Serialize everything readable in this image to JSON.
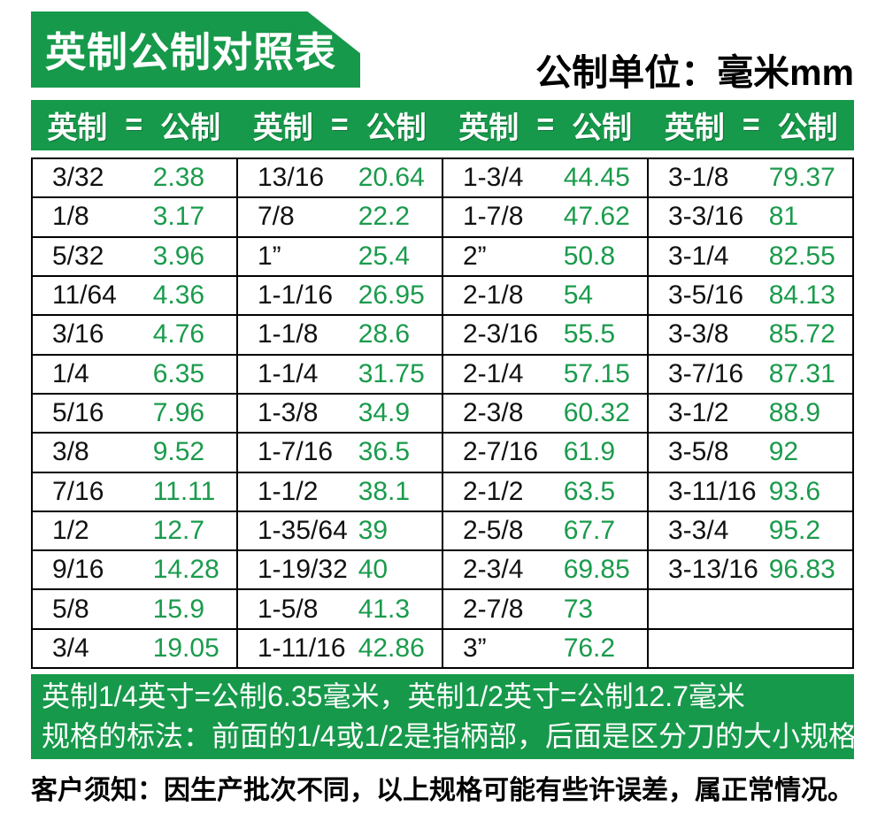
{
  "header": {
    "title": "英制公制对照表",
    "unit_label": "公制单位：毫米mm"
  },
  "table": {
    "column_header": {
      "imperial": "英制",
      "equals": "=",
      "metric": "公制"
    },
    "groups": [
      {
        "rows": [
          {
            "imperial": "3/32",
            "metric": "2.38"
          },
          {
            "imperial": "1/8",
            "metric": "3.17"
          },
          {
            "imperial": "5/32",
            "metric": "3.96"
          },
          {
            "imperial": "11/64",
            "metric": "4.36"
          },
          {
            "imperial": "3/16",
            "metric": "4.76"
          },
          {
            "imperial": "1/4",
            "metric": "6.35"
          },
          {
            "imperial": "5/16",
            "metric": "7.96"
          },
          {
            "imperial": "3/8",
            "metric": "9.52"
          },
          {
            "imperial": "7/16",
            "metric": "11.11"
          },
          {
            "imperial": "1/2",
            "metric": "12.7"
          },
          {
            "imperial": "9/16",
            "metric": "14.28"
          },
          {
            "imperial": "5/8",
            "metric": "15.9"
          },
          {
            "imperial": "3/4",
            "metric": "19.05"
          }
        ]
      },
      {
        "rows": [
          {
            "imperial": "13/16",
            "metric": "20.64"
          },
          {
            "imperial": "7/8",
            "metric": "22.2"
          },
          {
            "imperial": "1”",
            "metric": "25.4"
          },
          {
            "imperial": "1-1/16",
            "metric": "26.95"
          },
          {
            "imperial": "1-1/8",
            "metric": "28.6"
          },
          {
            "imperial": "1-1/4",
            "metric": "31.75"
          },
          {
            "imperial": "1-3/8",
            "metric": "34.9"
          },
          {
            "imperial": "1-7/16",
            "metric": "36.5"
          },
          {
            "imperial": "1-1/2",
            "metric": "38.1"
          },
          {
            "imperial": "1-35/64",
            "metric": "39"
          },
          {
            "imperial": "1-19/32",
            "metric": "40"
          },
          {
            "imperial": "1-5/8",
            "metric": "41.3"
          },
          {
            "imperial": "1-11/16",
            "metric": "42.86"
          }
        ]
      },
      {
        "rows": [
          {
            "imperial": "1-3/4",
            "metric": "44.45"
          },
          {
            "imperial": "1-7/8",
            "metric": "47.62"
          },
          {
            "imperial": "2”",
            "metric": "50.8"
          },
          {
            "imperial": "2-1/8",
            "metric": "54"
          },
          {
            "imperial": "2-3/16",
            "metric": "55.5"
          },
          {
            "imperial": "2-1/4",
            "metric": "57.15"
          },
          {
            "imperial": "2-3/8",
            "metric": "60.32"
          },
          {
            "imperial": "2-7/16",
            "metric": "61.9"
          },
          {
            "imperial": "2-1/2",
            "metric": "63.5"
          },
          {
            "imperial": "2-5/8",
            "metric": "67.7"
          },
          {
            "imperial": "2-3/4",
            "metric": "69.85"
          },
          {
            "imperial": "2-7/8",
            "metric": "73"
          },
          {
            "imperial": "3”",
            "metric": "76.2"
          }
        ]
      },
      {
        "rows": [
          {
            "imperial": "3-1/8",
            "metric": "79.37"
          },
          {
            "imperial": "3-3/16",
            "metric": "81"
          },
          {
            "imperial": "3-1/4",
            "metric": "82.55"
          },
          {
            "imperial": "3-5/16",
            "metric": "84.13"
          },
          {
            "imperial": "3-3/8",
            "metric": "85.72"
          },
          {
            "imperial": "3-7/16",
            "metric": "87.31"
          },
          {
            "imperial": "3-1/2",
            "metric": "88.9"
          },
          {
            "imperial": "3-5/8",
            "metric": "92"
          },
          {
            "imperial": "3-11/16",
            "metric": "93.6"
          },
          {
            "imperial": "3-3/4",
            "metric": "95.2"
          },
          {
            "imperial": "3-13/16",
            "metric": "96.83"
          },
          {
            "imperial": "",
            "metric": ""
          },
          {
            "imperial": "",
            "metric": ""
          }
        ]
      }
    ]
  },
  "footer": {
    "note_line1": "英制1/4英寸=公制6.35毫米，英制1/2英寸=公制12.7毫米",
    "note_line2": "规格的标法：前面的1/4或1/2是指柄部，后面是区分刀的大小规格",
    "notice": "客户须知：因生产批次不同，以上规格可能有些许误差，属正常情况。"
  },
  "colors": {
    "banner_green": "#16994a",
    "value_green": "#1a9b4c",
    "border_black": "#000000"
  }
}
